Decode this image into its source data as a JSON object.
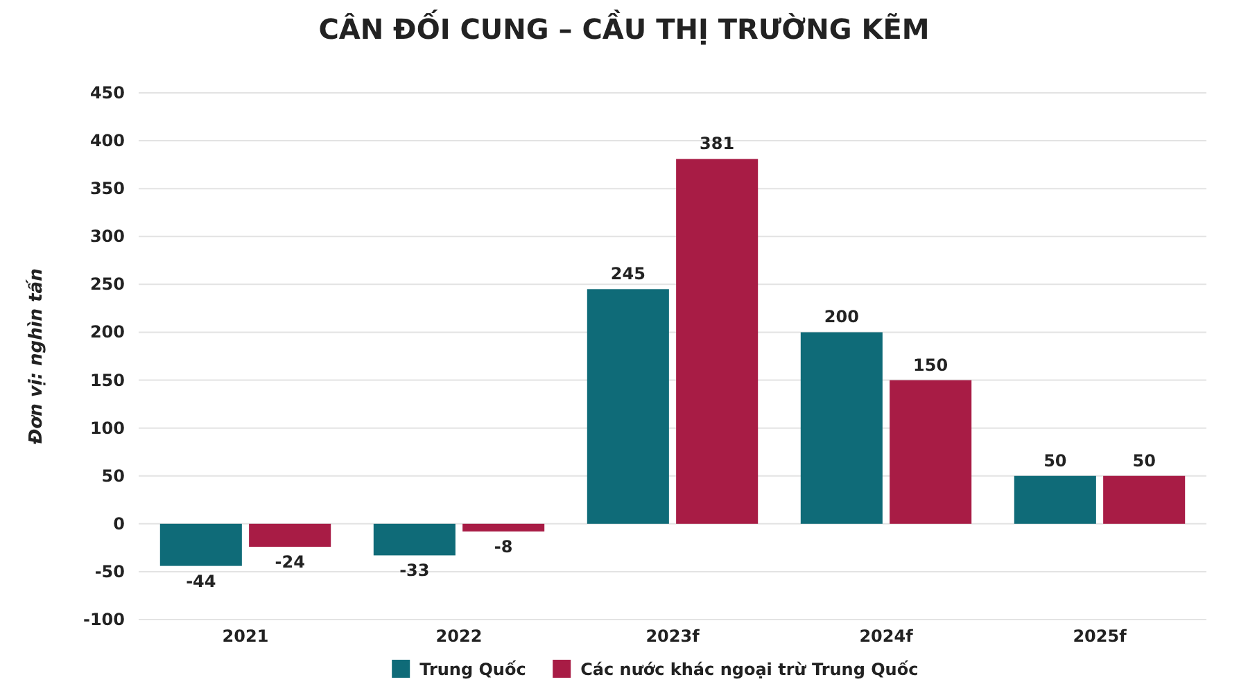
{
  "chart_data": {
    "type": "bar",
    "title": "CÂN ĐỐI CUNG – CẦU THỊ TRƯỜNG KẼM",
    "ylabel": "Đơn vị: nghìn tấn",
    "categories": [
      "2021",
      "2022",
      "2023f",
      "2024f",
      "2025f"
    ],
    "series": [
      {
        "name": "Trung Quốc",
        "color": "#0f6b78",
        "values": [
          -44,
          -33,
          245,
          200,
          50
        ]
      },
      {
        "name": "Các nước khác ngoại trừ Trung Quốc",
        "color": "#a81c45",
        "values": [
          -24,
          -8,
          381,
          150,
          50
        ]
      }
    ],
    "ylim": [
      -100,
      450
    ],
    "yticks": [
      -100,
      -50,
      0,
      50,
      100,
      150,
      200,
      250,
      300,
      350,
      400,
      450
    ],
    "grid": "y",
    "legend": "bottom",
    "data_labels": true
  }
}
